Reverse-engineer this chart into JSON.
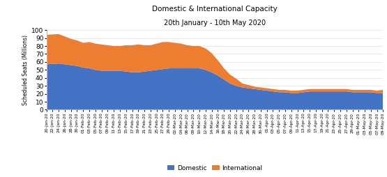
{
  "title_line1": "Domestic & International Capacity",
  "title_line2": "20th January - 10th May 2020",
  "ylabel": "Scheduled Seats (Millions)",
  "ylim": [
    0,
    100
  ],
  "yticks": [
    0,
    10,
    20,
    30,
    40,
    50,
    60,
    70,
    80,
    90,
    100
  ],
  "domestic_color": "#4472C4",
  "international_color": "#ED7D31",
  "background_color": "#FFFFFF",
  "dates": [
    "20-Jan-20",
    "22-Jan-20",
    "24-Jan-20",
    "26-Jan-20",
    "28-Jan-20",
    "30-Jan-20",
    "01-Feb-20",
    "03-Feb-20",
    "05-Feb-20",
    "07-Feb-20",
    "09-Feb-20",
    "11-Feb-20",
    "13-Feb-20",
    "15-Feb-20",
    "17-Feb-20",
    "19-Feb-20",
    "21-Feb-20",
    "23-Feb-20",
    "25-Feb-20",
    "27-Feb-20",
    "29-Feb-20",
    "02-Mar-20",
    "04-Mar-20",
    "06-Mar-20",
    "08-Mar-20",
    "10-Mar-20",
    "12-Mar-20",
    "14-Mar-20",
    "16-Mar-20",
    "18-Mar-20",
    "20-Mar-20",
    "22-Mar-20",
    "24-Mar-20",
    "26-Mar-20",
    "28-Mar-20",
    "30-Mar-20",
    "01-Apr-20",
    "03-Apr-20",
    "05-Apr-20",
    "07-Apr-20",
    "09-Apr-20",
    "11-Apr-20",
    "13-Apr-20",
    "15-Apr-20",
    "17-Apr-20",
    "19-Apr-20",
    "21-Apr-20",
    "23-Apr-20",
    "25-Apr-20",
    "27-Apr-20",
    "29-Apr-20",
    "01-May-20",
    "03-May-20",
    "05-May-20",
    "07-May-20",
    "09-May-20"
  ],
  "domestic": [
    57,
    57.5,
    58,
    57,
    56,
    55,
    53,
    52,
    50,
    49,
    49,
    49,
    49,
    48,
    47,
    47,
    48,
    49,
    50,
    51,
    52,
    52,
    52,
    52,
    52,
    52,
    50,
    47,
    43,
    38,
    33,
    30,
    28,
    27,
    26,
    25,
    24,
    23,
    22,
    22,
    21,
    21,
    22,
    23,
    23,
    23,
    23,
    23,
    23,
    23,
    22,
    22,
    22,
    22,
    21,
    21
  ],
  "international": [
    37,
    37,
    37,
    35,
    33,
    32,
    31,
    33,
    33,
    33,
    32,
    31,
    31,
    33,
    34,
    35,
    33,
    32,
    33,
    34,
    33,
    32,
    31,
    29,
    28,
    28,
    27,
    24,
    19,
    14,
    11,
    9,
    5,
    4,
    3,
    3,
    3,
    3,
    3,
    3,
    3,
    3,
    3,
    3,
    3,
    3,
    3,
    3,
    3,
    3,
    3,
    3,
    3,
    3,
    3,
    4
  ],
  "legend_domestic": "Domestic",
  "legend_international": "International"
}
